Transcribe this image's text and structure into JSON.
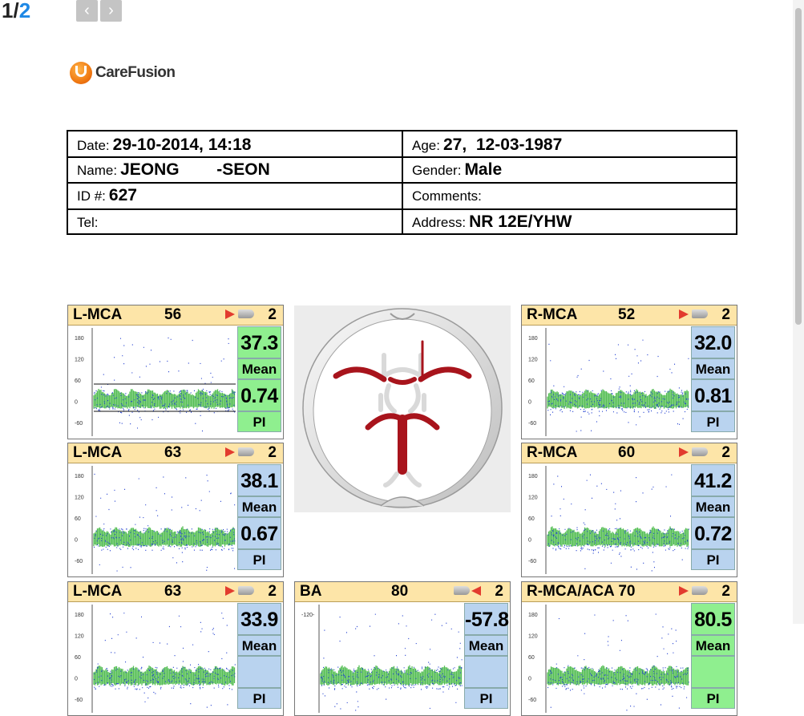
{
  "pager": {
    "current": "1/",
    "total": "2",
    "prev_icon": "‹",
    "next_icon": "›"
  },
  "logo": {
    "text": "CareFusion"
  },
  "patient": {
    "date_label": "Date:",
    "date_value": "29-10-2014, 14:18",
    "age_label": "Age:",
    "age_value": "27,  12-03-1987",
    "name_label": "Name:",
    "name_value": "JEONG        -SEON",
    "gender_label": "Gender:",
    "gender_value": "Male",
    "id_label": "ID #:",
    "id_value": "627",
    "comments_label": "Comments:",
    "comments_value": "",
    "tel_label": "Tel:",
    "tel_value": "",
    "address_label": "Address:",
    "address_value": "NR 12E/YHW"
  },
  "axis_ticks": [
    "180",
    "120",
    "60",
    "0",
    "-60"
  ],
  "ba_ticks": [
    "-120-"
  ],
  "panels": [
    {
      "vessel": "L-MCA",
      "depth": "56",
      "channel": "2",
      "mean": "37.3",
      "mean_label": "Mean",
      "pi": "0.74",
      "pi_label": "PI",
      "mean_color": "#8fef8f",
      "pi_color": "#8fef8f",
      "direction": "right"
    },
    {
      "vessel": "R-MCA",
      "depth": "52",
      "channel": "2",
      "mean": "32.0",
      "mean_label": "Mean",
      "pi": "0.81",
      "pi_label": "PI",
      "mean_color": "#b9d3ef",
      "pi_color": "#b9d3ef",
      "direction": "right"
    },
    {
      "vessel": "L-MCA",
      "depth": "63",
      "channel": "2",
      "mean": "38.1",
      "mean_label": "Mean",
      "pi": "0.67",
      "pi_label": "PI",
      "mean_color": "#b9d3ef",
      "pi_color": "#b9d3ef",
      "direction": "right"
    },
    {
      "vessel": "R-MCA",
      "depth": "60",
      "channel": "2",
      "mean": "41.2",
      "mean_label": "Mean",
      "pi": "0.72",
      "pi_label": "PI",
      "mean_color": "#b9d3ef",
      "pi_color": "#b9d3ef",
      "direction": "right"
    },
    {
      "vessel": "L-MCA",
      "depth": "63",
      "channel": "2",
      "mean": "33.9",
      "mean_label": "Mean",
      "pi": "",
      "pi_label": "PI",
      "mean_color": "#b9d3ef",
      "pi_color": "#b9d3ef",
      "direction": "right"
    },
    {
      "vessel": "BA",
      "depth": "80",
      "channel": "2",
      "mean": "-57.8",
      "mean_label": "Mean",
      "pi": "",
      "pi_label": "PI",
      "mean_color": "#b9d3ef",
      "pi_color": "#b9d3ef",
      "direction": "left"
    },
    {
      "vessel": "R-MCA/ACA 70",
      "depth": "",
      "channel": "2",
      "mean": "80.5",
      "mean_label": "Mean",
      "pi": "",
      "pi_label": "PI",
      "mean_color": "#8fef8f",
      "pi_color": "#8fef8f",
      "direction": "right"
    }
  ],
  "colors": {
    "arrow": "#e23b2e",
    "vessel_red": "#a8141c",
    "header_bg": "#fde5a8",
    "trace_green": "#3ab53a",
    "trace_blue": "#2340d0"
  }
}
